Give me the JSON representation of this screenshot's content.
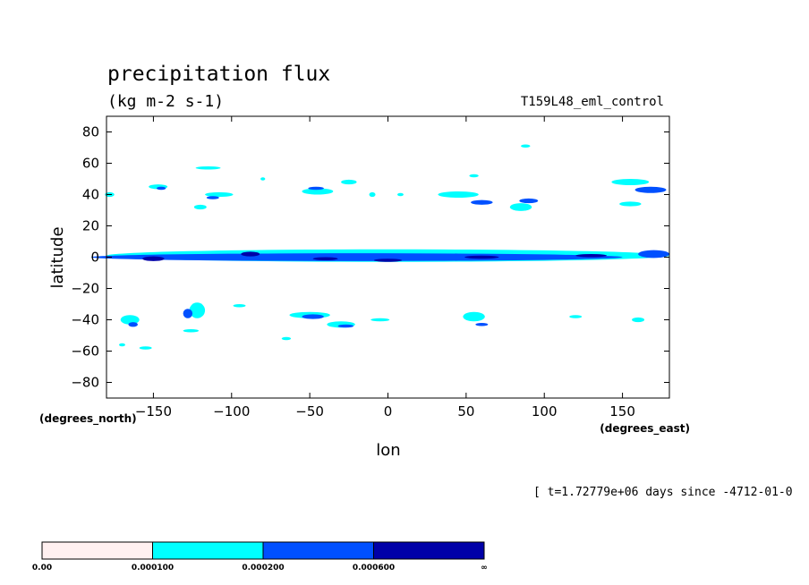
{
  "chart_data": {
    "type": "heatmap",
    "title": "precipitation flux",
    "units": "(kg m-2 s-1)",
    "run_label": "T159L48_eml_control",
    "xlabel": "lon",
    "ylabel": "latitude",
    "x_units": "(degrees_east)",
    "y_units": "(degrees_north)",
    "time_label": "[ t=1.72779e+06 days since -4712-01-0",
    "xlim": [
      -180,
      180
    ],
    "ylim": [
      -90,
      90
    ],
    "x_ticks": [
      -150,
      -100,
      -50,
      0,
      50,
      100,
      150
    ],
    "y_ticks": [
      80,
      60,
      40,
      20,
      0,
      -20,
      -40,
      -60,
      -80
    ],
    "x_tick_labels": [
      "−150",
      "−100",
      "−50",
      "0",
      "50",
      "100",
      "150"
    ],
    "y_tick_labels": [
      "80",
      "60",
      "40",
      "20",
      "0",
      "−20",
      "−40",
      "−60",
      "−80"
    ],
    "colorbar": {
      "bins": [
        {
          "from": "0.00",
          "to": "0.000100",
          "color": "#fff0f0"
        },
        {
          "from": "0.000100",
          "to": "0.000200",
          "color": "#00ffff"
        },
        {
          "from": "0.000200",
          "to": "0.000600",
          "color": "#0050ff"
        },
        {
          "from": "0.000600",
          "to": "∞",
          "color": "#0000a8"
        }
      ],
      "tick_labels": [
        "0.00",
        "0.000100",
        "0.000200",
        "0.000600",
        "∞"
      ]
    },
    "regions": [
      {
        "level": 1,
        "lon": 0,
        "lat": 1,
        "w": 360,
        "h": 8
      },
      {
        "level": 2,
        "lon": -20,
        "lat": 0,
        "w": 340,
        "h": 5
      },
      {
        "level": 2,
        "lon": 170,
        "lat": 2,
        "w": 20,
        "h": 5
      },
      {
        "level": 3,
        "lon": -150,
        "lat": -1,
        "w": 14,
        "h": 3
      },
      {
        "level": 3,
        "lon": -88,
        "lat": 2,
        "w": 12,
        "h": 3
      },
      {
        "level": 3,
        "lon": -40,
        "lat": -1,
        "w": 16,
        "h": 2
      },
      {
        "level": 3,
        "lon": 0,
        "lat": -2,
        "w": 18,
        "h": 2
      },
      {
        "level": 3,
        "lon": 60,
        "lat": 0,
        "w": 22,
        "h": 2
      },
      {
        "level": 3,
        "lon": 130,
        "lat": 1,
        "w": 20,
        "h": 2
      },
      {
        "level": 1,
        "lon": -147,
        "lat": 45,
        "w": 12,
        "h": 3
      },
      {
        "level": 2,
        "lon": -145,
        "lat": 44,
        "w": 6,
        "h": 2
      },
      {
        "level": 1,
        "lon": -115,
        "lat": 57,
        "w": 16,
        "h": 2
      },
      {
        "level": 1,
        "lon": -108,
        "lat": 40,
        "w": 18,
        "h": 3
      },
      {
        "level": 2,
        "lon": -112,
        "lat": 38,
        "w": 8,
        "h": 2
      },
      {
        "level": 1,
        "lon": -120,
        "lat": 32,
        "w": 8,
        "h": 3
      },
      {
        "level": 1,
        "lon": -80,
        "lat": 50,
        "w": 3,
        "h": 2
      },
      {
        "level": 1,
        "lon": -45,
        "lat": 42,
        "w": 20,
        "h": 4
      },
      {
        "level": 2,
        "lon": -46,
        "lat": 44,
        "w": 10,
        "h": 2
      },
      {
        "level": 1,
        "lon": -25,
        "lat": 48,
        "w": 10,
        "h": 3
      },
      {
        "level": 1,
        "lon": -10,
        "lat": 40,
        "w": 4,
        "h": 3
      },
      {
        "level": 1,
        "lon": 8,
        "lat": 40,
        "w": 4,
        "h": 2
      },
      {
        "level": 1,
        "lon": 45,
        "lat": 40,
        "w": 26,
        "h": 4
      },
      {
        "level": 2,
        "lon": 60,
        "lat": 35,
        "w": 14,
        "h": 3
      },
      {
        "level": 1,
        "lon": 55,
        "lat": 52,
        "w": 6,
        "h": 2
      },
      {
        "level": 1,
        "lon": 85,
        "lat": 32,
        "w": 14,
        "h": 5
      },
      {
        "level": 2,
        "lon": 90,
        "lat": 36,
        "w": 12,
        "h": 3
      },
      {
        "level": 1,
        "lon": 88,
        "lat": 71,
        "w": 6,
        "h": 2
      },
      {
        "level": 1,
        "lon": 155,
        "lat": 48,
        "w": 24,
        "h": 4
      },
      {
        "level": 2,
        "lon": 168,
        "lat": 43,
        "w": 20,
        "h": 4
      },
      {
        "level": 1,
        "lon": 155,
        "lat": 34,
        "w": 14,
        "h": 3
      },
      {
        "level": 1,
        "lon": -178,
        "lat": 40,
        "w": 6,
        "h": 3
      },
      {
        "level": 1,
        "lon": -165,
        "lat": -40,
        "w": 12,
        "h": 6
      },
      {
        "level": 2,
        "lon": -163,
        "lat": -43,
        "w": 6,
        "h": 3
      },
      {
        "level": 1,
        "lon": -122,
        "lat": -34,
        "w": 10,
        "h": 10
      },
      {
        "level": 2,
        "lon": -128,
        "lat": -36,
        "w": 6,
        "h": 6
      },
      {
        "level": 1,
        "lon": -126,
        "lat": -47,
        "w": 10,
        "h": 2
      },
      {
        "level": 1,
        "lon": -95,
        "lat": -31,
        "w": 8,
        "h": 2
      },
      {
        "level": 1,
        "lon": -50,
        "lat": -37,
        "w": 26,
        "h": 4
      },
      {
        "level": 2,
        "lon": -48,
        "lat": -38,
        "w": 14,
        "h": 3
      },
      {
        "level": 1,
        "lon": -30,
        "lat": -43,
        "w": 18,
        "h": 4
      },
      {
        "level": 2,
        "lon": -27,
        "lat": -44,
        "w": 10,
        "h": 2
      },
      {
        "level": 1,
        "lon": -5,
        "lat": -40,
        "w": 12,
        "h": 2
      },
      {
        "level": 1,
        "lon": 55,
        "lat": -38,
        "w": 14,
        "h": 6
      },
      {
        "level": 2,
        "lon": 60,
        "lat": -43,
        "w": 8,
        "h": 2
      },
      {
        "level": 1,
        "lon": 120,
        "lat": -38,
        "w": 8,
        "h": 2
      },
      {
        "level": 1,
        "lon": 160,
        "lat": -40,
        "w": 8,
        "h": 3
      },
      {
        "level": 1,
        "lon": -155,
        "lat": -58,
        "w": 8,
        "h": 2
      },
      {
        "level": 1,
        "lon": -65,
        "lat": -52,
        "w": 6,
        "h": 2
      },
      {
        "level": 1,
        "lon": -170,
        "lat": -56,
        "w": 4,
        "h": 2
      }
    ]
  }
}
